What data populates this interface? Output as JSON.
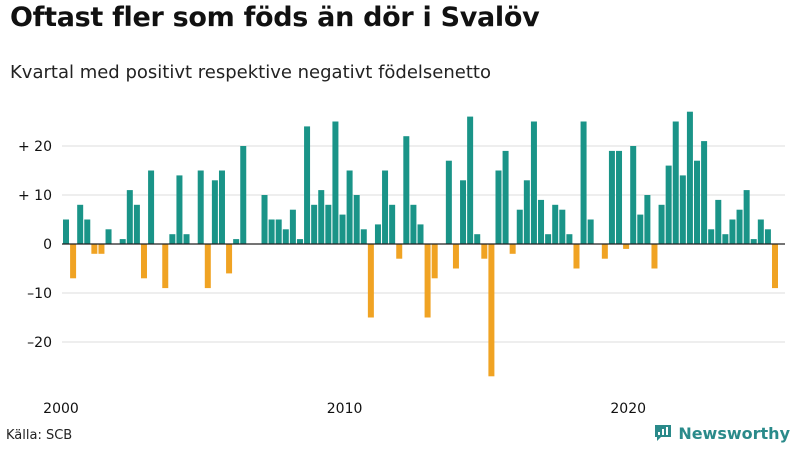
{
  "title": "Oftast fler som föds än dör i Svalöv",
  "subtitle": "Kvartal med positivt respektive negativt födelsenetto",
  "source": "Källa: SCB",
  "brand": {
    "name": "Newsworthy",
    "icon": "newsworthy-logo-icon"
  },
  "colors": {
    "positive": "#1a9488",
    "negative": "#f0a323",
    "grid": "#dddddd",
    "zero": "#222222"
  },
  "chart_data": {
    "type": "bar",
    "title": "Oftast fler som föds än dör i Svalöv",
    "subtitle": "Kvartal med positivt respektive negativt födelsenetto",
    "xlabel": "",
    "ylabel": "",
    "start_year": 2000,
    "periods_per_year": 4,
    "ylim": [
      -29,
      29
    ],
    "yticks": [
      {
        "value": 20,
        "label": "+ 20"
      },
      {
        "value": 10,
        "label": "+ 10"
      },
      {
        "value": 0,
        "label": "0"
      },
      {
        "value": -10,
        "label": "–10"
      },
      {
        "value": -20,
        "label": "–20"
      }
    ],
    "xticks": [
      {
        "index": 0,
        "label": "2000"
      },
      {
        "index": 40,
        "label": "2010"
      },
      {
        "index": 80,
        "label": "2020"
      }
    ],
    "values": [
      5,
      -7,
      8,
      5,
      -2,
      -2,
      3,
      0,
      1,
      11,
      8,
      -7,
      15,
      0,
      -9,
      2,
      14,
      2,
      0,
      15,
      -9,
      13,
      15,
      -6,
      1,
      20,
      0,
      0,
      10,
      5,
      5,
      3,
      7,
      1,
      24,
      8,
      11,
      8,
      25,
      6,
      15,
      10,
      3,
      -15,
      4,
      15,
      8,
      -3,
      22,
      8,
      4,
      -15,
      -7,
      0,
      17,
      -5,
      13,
      26,
      2,
      -3,
      -27,
      15,
      19,
      -2,
      7,
      13,
      25,
      9,
      2,
      8,
      7,
      2,
      -5,
      25,
      5,
      0,
      -3,
      19,
      19,
      -1,
      20,
      6,
      10,
      -5,
      8,
      16,
      25,
      14,
      27,
      17,
      21,
      3,
      9,
      2,
      5,
      7,
      11,
      1,
      5,
      3,
      -9
    ]
  }
}
